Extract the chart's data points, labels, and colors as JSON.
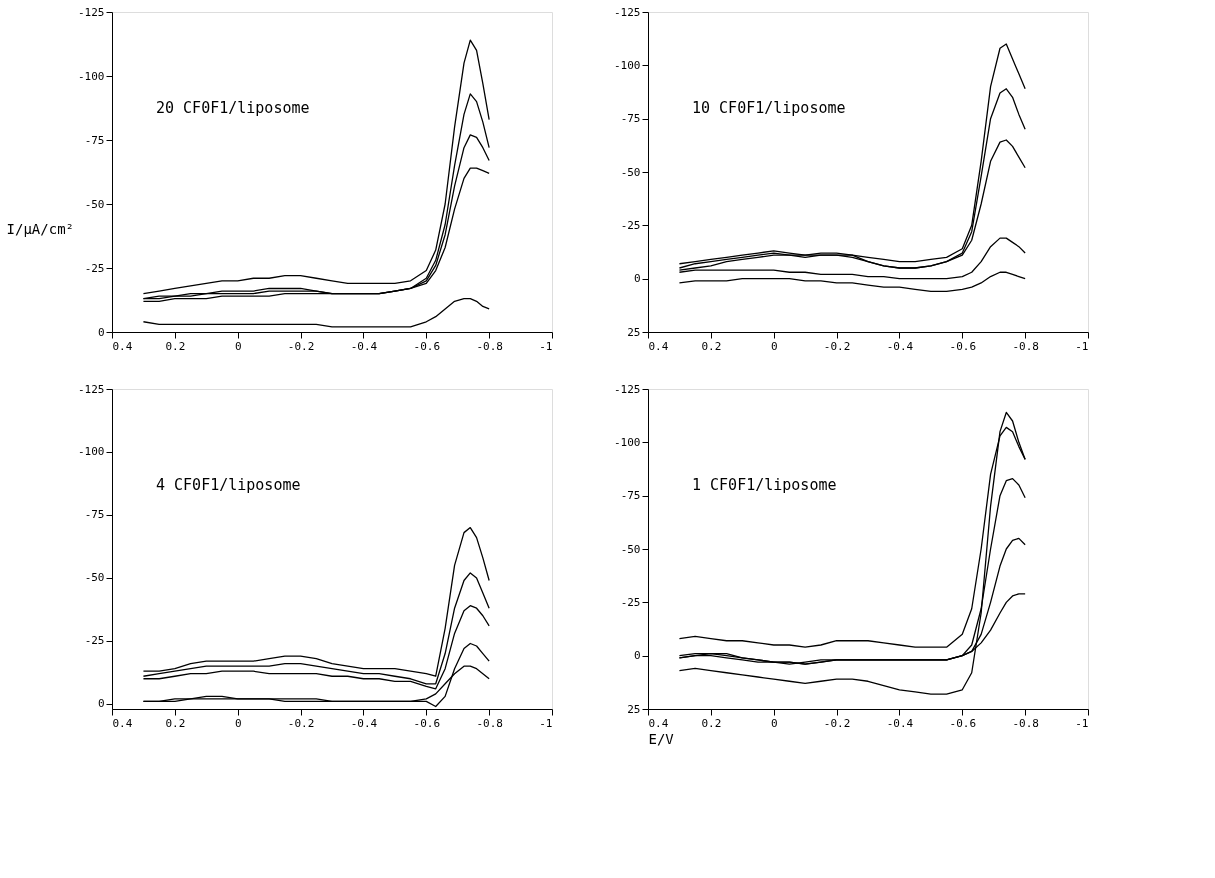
{
  "chart_data": [
    {
      "type": "line",
      "ylabel": "I/μA/cm²",
      "annotations": [
        "20 CF0F1/liposome"
      ],
      "xlim": [
        0.4,
        -1
      ],
      "xticks": [
        0.4,
        0.2,
        0,
        -0.2,
        -0.4,
        -0.6,
        -0.8,
        -1
      ],
      "ylim": [
        0,
        -125
      ],
      "yticks": [
        0,
        -25,
        -50,
        -75,
        -100,
        -125
      ],
      "marker": "none",
      "line_style": "solid",
      "x": [
        0.3,
        0.25,
        0.2,
        0.15,
        0.1,
        0.05,
        0,
        -0.05,
        -0.1,
        -0.15,
        -0.2,
        -0.25,
        -0.3,
        -0.35,
        -0.4,
        -0.45,
        -0.5,
        -0.55,
        -0.6,
        -0.63,
        -0.66,
        -0.69,
        -0.72,
        -0.74,
        -0.76,
        -0.78,
        -0.8
      ],
      "series": [
        {
          "color": "#000000",
          "values": [
            -15,
            -16,
            -17,
            -18,
            -19,
            -20,
            -20,
            -21,
            -21,
            -22,
            -22,
            -21,
            -20,
            -19,
            -19,
            -19,
            -19,
            -20,
            -24,
            -32,
            -50,
            -80,
            -105,
            -114,
            -110,
            -97,
            -83
          ]
        },
        {
          "color": "#000000",
          "values": [
            -13,
            -14,
            -14,
            -15,
            -15,
            -16,
            -16,
            -16,
            -17,
            -17,
            -17,
            -16,
            -15,
            -15,
            -15,
            -15,
            -16,
            -17,
            -21,
            -28,
            -42,
            -65,
            -85,
            -93,
            -90,
            -82,
            -72
          ]
        },
        {
          "color": "#000000",
          "values": [
            -13,
            -13,
            -14,
            -14,
            -15,
            -15,
            -15,
            -15,
            -16,
            -16,
            -16,
            -16,
            -15,
            -15,
            -15,
            -15,
            -16,
            -17,
            -20,
            -26,
            -38,
            -57,
            -72,
            -77,
            -76,
            -72,
            -67
          ]
        },
        {
          "color": "#000000",
          "values": [
            -12,
            -12,
            -13,
            -13,
            -13,
            -14,
            -14,
            -14,
            -14,
            -15,
            -15,
            -15,
            -15,
            -15,
            -15,
            -15,
            -16,
            -17,
            -19,
            -24,
            -33,
            -48,
            -60,
            -64,
            -64,
            -63,
            -62
          ]
        },
        {
          "color": "#000000",
          "values": [
            -4,
            -3,
            -3,
            -3,
            -3,
            -3,
            -3,
            -3,
            -3,
            -3,
            -3,
            -3,
            -2,
            -2,
            -2,
            -2,
            -2,
            -2,
            -4,
            -6,
            -9,
            -12,
            -13,
            -13,
            -12,
            -10,
            -9
          ]
        }
      ]
    },
    {
      "type": "line",
      "annotations": [
        "10 CF0F1/liposome"
      ],
      "xlim": [
        0.4,
        -1
      ],
      "xticks": [
        0.4,
        0.2,
        0,
        -0.2,
        -0.4,
        -0.6,
        -0.8,
        -1
      ],
      "ylim": [
        25,
        -125
      ],
      "yticks": [
        25,
        0,
        -25,
        -50,
        -75,
        -100,
        -125
      ],
      "marker": "none",
      "line_style": "solid",
      "x": [
        0.3,
        0.25,
        0.2,
        0.15,
        0.1,
        0.05,
        0,
        -0.05,
        -0.1,
        -0.15,
        -0.2,
        -0.25,
        -0.3,
        -0.35,
        -0.4,
        -0.45,
        -0.5,
        -0.55,
        -0.6,
        -0.63,
        -0.66,
        -0.69,
        -0.72,
        -0.74,
        -0.76,
        -0.78,
        -0.8
      ],
      "series": [
        {
          "color": "#000000",
          "values": [
            -7,
            -8,
            -9,
            -10,
            -11,
            -12,
            -13,
            -12,
            -11,
            -11,
            -11,
            -11,
            -10,
            -9,
            -8,
            -8,
            -9,
            -10,
            -14,
            -25,
            -55,
            -90,
            -108,
            -110,
            -103,
            -96,
            -89
          ]
        },
        {
          "color": "#000000",
          "values": [
            -5,
            -7,
            -8,
            -9,
            -10,
            -11,
            -12,
            -11,
            -11,
            -12,
            -12,
            -11,
            -8,
            -6,
            -5,
            -5,
            -6,
            -8,
            -12,
            -22,
            -48,
            -75,
            -87,
            -89,
            -85,
            -77,
            -70
          ]
        },
        {
          "color": "#000000",
          "values": [
            -4,
            -5,
            -6,
            -8,
            -9,
            -10,
            -11,
            -11,
            -10,
            -11,
            -11,
            -10,
            -8,
            -6,
            -5,
            -5,
            -6,
            -8,
            -11,
            -18,
            -35,
            -55,
            -64,
            -65,
            -62,
            -57,
            -52
          ]
        },
        {
          "color": "#000000",
          "values": [
            -3,
            -4,
            -4,
            -4,
            -4,
            -4,
            -4,
            -3,
            -3,
            -2,
            -2,
            -2,
            -1,
            -1,
            0,
            0,
            0,
            0,
            -1,
            -3,
            -8,
            -15,
            -19,
            -19,
            -17,
            -15,
            -12
          ]
        },
        {
          "color": "#000000",
          "values": [
            2,
            1,
            1,
            1,
            0,
            0,
            0,
            0,
            1,
            1,
            2,
            2,
            3,
            4,
            4,
            5,
            6,
            6,
            5,
            4,
            2,
            -1,
            -3,
            -3,
            -2,
            -1,
            0
          ]
        }
      ]
    },
    {
      "type": "line",
      "annotations": [
        "4 CF0F1/liposome"
      ],
      "xlim": [
        0.4,
        -1
      ],
      "xticks": [
        0.4,
        0.2,
        0,
        -0.2,
        -0.4,
        -0.6,
        -0.8,
        -1
      ],
      "ylim": [
        2,
        -125
      ],
      "yticks": [
        0,
        -25,
        -50,
        -75,
        -100,
        -125
      ],
      "marker": "none",
      "line_style": "solid",
      "x": [
        0.3,
        0.25,
        0.2,
        0.15,
        0.1,
        0.05,
        0,
        -0.05,
        -0.1,
        -0.15,
        -0.2,
        -0.25,
        -0.3,
        -0.35,
        -0.4,
        -0.45,
        -0.5,
        -0.55,
        -0.6,
        -0.63,
        -0.66,
        -0.69,
        -0.72,
        -0.74,
        -0.76,
        -0.78,
        -0.8
      ],
      "series": [
        {
          "color": "#000000",
          "values": [
            -13,
            -13,
            -14,
            -16,
            -17,
            -17,
            -17,
            -17,
            -18,
            -19,
            -19,
            -18,
            -16,
            -15,
            -14,
            -14,
            -14,
            -13,
            -12,
            -11,
            -30,
            -55,
            -68,
            -70,
            -66,
            -58,
            -49
          ]
        },
        {
          "color": "#000000",
          "values": [
            -11,
            -12,
            -13,
            -14,
            -15,
            -15,
            -15,
            -15,
            -15,
            -16,
            -16,
            -15,
            -14,
            -13,
            -12,
            -12,
            -11,
            -10,
            -8,
            -8,
            -20,
            -38,
            -49,
            -52,
            -50,
            -44,
            -38
          ]
        },
        {
          "color": "#000000",
          "values": [
            -10,
            -10,
            -11,
            -12,
            -12,
            -13,
            -13,
            -13,
            -12,
            -12,
            -12,
            -12,
            -11,
            -11,
            -10,
            -10,
            -9,
            -9,
            -7,
            -6,
            -14,
            -28,
            -37,
            -39,
            -38,
            -35,
            -31
          ]
        },
        {
          "color": "#000000",
          "values": [
            -1,
            -1,
            -2,
            -2,
            -3,
            -3,
            -2,
            -2,
            -2,
            -2,
            -2,
            -2,
            -1,
            -1,
            -1,
            -1,
            -1,
            -1,
            -1,
            1,
            -3,
            -14,
            -22,
            -24,
            -23,
            -20,
            -17
          ]
        },
        {
          "color": "#000000",
          "values": [
            -1,
            -1,
            -1,
            -2,
            -2,
            -2,
            -2,
            -2,
            -2,
            -1,
            -1,
            -1,
            -1,
            -1,
            -1,
            -1,
            -1,
            -1,
            -2,
            -4,
            -8,
            -12,
            -15,
            -15,
            -14,
            -12,
            -10
          ]
        }
      ]
    },
    {
      "type": "line",
      "xlabel": "E/V",
      "annotations": [
        "1 CF0F1/liposome"
      ],
      "xlim": [
        0.4,
        -1
      ],
      "xticks": [
        0.4,
        0.2,
        0,
        -0.2,
        -0.4,
        -0.6,
        -0.8,
        -1
      ],
      "ylim": [
        25,
        -125
      ],
      "yticks": [
        25,
        0,
        -25,
        -50,
        -75,
        -100,
        -125
      ],
      "marker": "none",
      "line_style": "solid",
      "x": [
        0.3,
        0.25,
        0.2,
        0.15,
        0.1,
        0.05,
        0,
        -0.05,
        -0.1,
        -0.15,
        -0.2,
        -0.25,
        -0.3,
        -0.35,
        -0.4,
        -0.45,
        -0.5,
        -0.55,
        -0.6,
        -0.63,
        -0.66,
        -0.69,
        -0.72,
        -0.74,
        -0.76,
        -0.78,
        -0.8
      ],
      "series": [
        {
          "color": "#000000",
          "values": [
            7,
            6,
            7,
            8,
            9,
            10,
            11,
            12,
            13,
            12,
            11,
            11,
            12,
            14,
            16,
            17,
            18,
            18,
            16,
            8,
            -20,
            -70,
            -105,
            -114,
            -110,
            -100,
            -92
          ]
        },
        {
          "color": "#000000",
          "values": [
            -8,
            -9,
            -8,
            -7,
            -7,
            -6,
            -5,
            -5,
            -4,
            -5,
            -7,
            -7,
            -7,
            -6,
            -5,
            -4,
            -4,
            -4,
            -10,
            -22,
            -50,
            -85,
            -103,
            -107,
            -105,
            -98,
            -92
          ]
        },
        {
          "color": "#000000",
          "values": [
            0,
            -1,
            -1,
            -1,
            1,
            2,
            3,
            3,
            4,
            3,
            2,
            2,
            2,
            2,
            2,
            2,
            2,
            2,
            0,
            -5,
            -22,
            -50,
            -75,
            -82,
            -83,
            -80,
            -74
          ]
        },
        {
          "color": "#000000",
          "values": [
            1,
            0,
            0,
            1,
            2,
            3,
            3,
            3,
            4,
            3,
            2,
            2,
            2,
            2,
            2,
            2,
            2,
            2,
            0,
            -2,
            -10,
            -25,
            -42,
            -50,
            -54,
            -55,
            -52
          ]
        },
        {
          "color": "#000000",
          "values": [
            1,
            0,
            -1,
            0,
            1,
            2,
            3,
            4,
            3,
            2,
            2,
            2,
            2,
            2,
            2,
            2,
            2,
            2,
            0,
            -2,
            -6,
            -12,
            -20,
            -25,
            -28,
            -29,
            -29
          ]
        }
      ]
    }
  ]
}
